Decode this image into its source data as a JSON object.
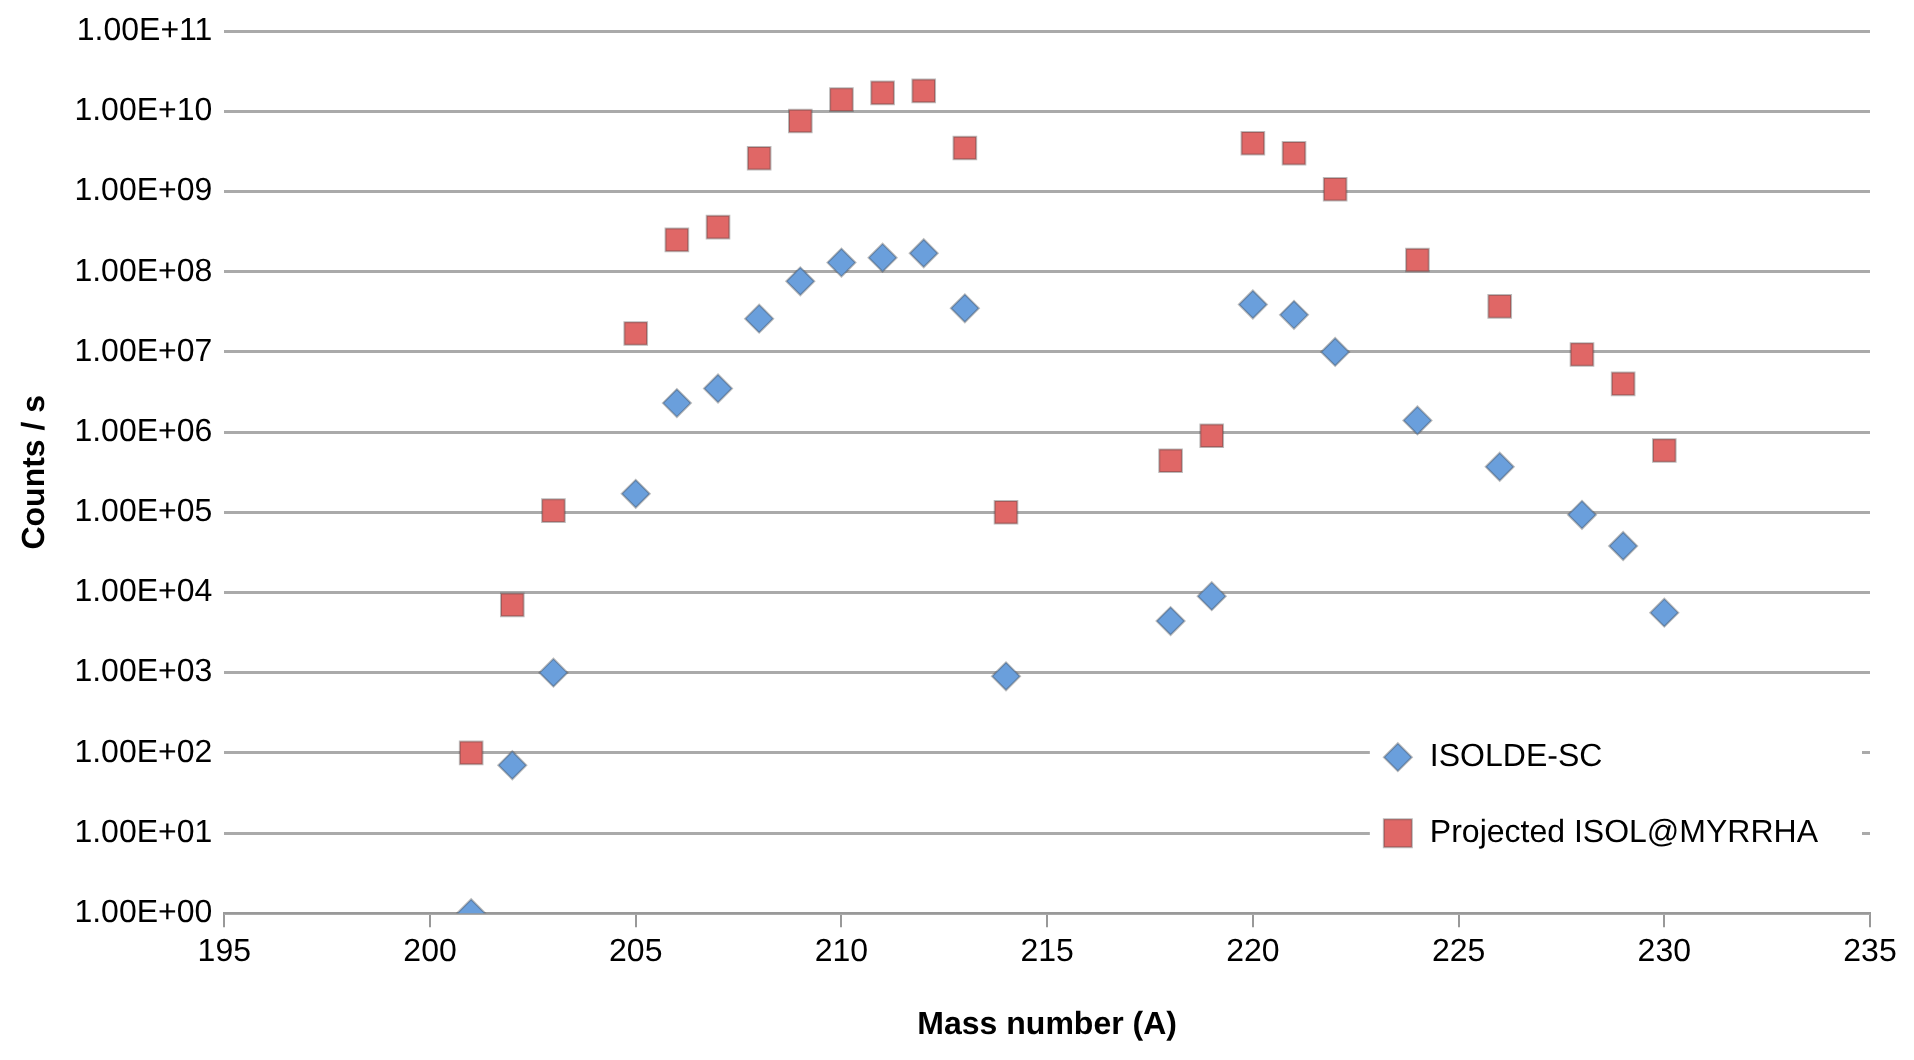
{
  "chart_data": {
    "type": "scatter",
    "xlabel": "Mass number (A)",
    "ylabel": "Counts / s",
    "log": "y",
    "grid": "y",
    "legend": "bottom right",
    "xlim": [
      195,
      235
    ],
    "xticks": [
      195,
      200,
      205,
      210,
      215,
      220,
      225,
      230,
      235
    ],
    "ylim": [
      1,
      100000000000
    ],
    "yticks": [
      {
        "value": 1,
        "label": "1.00E+00"
      },
      {
        "value": 10,
        "label": "1.00E+01"
      },
      {
        "value": 100,
        "label": "1.00E+02"
      },
      {
        "value": 1000,
        "label": "1.00E+03"
      },
      {
        "value": 10000,
        "label": "1.00E+04"
      },
      {
        "value": 100000,
        "label": "1.00E+05"
      },
      {
        "value": 1000000,
        "label": "1.00E+06"
      },
      {
        "value": 10000000,
        "label": "1.00E+07"
      },
      {
        "value": 100000000,
        "label": "1.00E+08"
      },
      {
        "value": 1000000000,
        "label": "1.00E+09"
      },
      {
        "value": 10000000000,
        "label": "1.00E+10"
      },
      {
        "value": 100000000000,
        "label": "1.00E+11"
      }
    ],
    "series": [
      {
        "name": "ISOLDE-SC",
        "color": "#6a9fdc",
        "marker": "diamond",
        "x": [
          201,
          202,
          203,
          205,
          206,
          207,
          208,
          209,
          210,
          211,
          212,
          213,
          214,
          218,
          219,
          220,
          221,
          222,
          224,
          226,
          228,
          229,
          230
        ],
        "values": [
          1,
          70,
          1000,
          170000,
          2300000,
          3500000,
          26000000,
          76000000,
          130000000,
          150000000,
          170000000,
          35000000,
          900,
          4400,
          9000,
          39000000,
          29000000,
          10000000,
          1400000,
          370000,
          93000,
          38000,
          5600
        ]
      },
      {
        "name": "Projected ISOL@MYRRHA",
        "color": "#e06766",
        "marker": "square",
        "x": [
          201,
          202,
          203,
          205,
          206,
          207,
          208,
          209,
          210,
          211,
          212,
          213,
          214,
          218,
          219,
          220,
          221,
          222,
          224,
          226,
          228,
          229,
          230
        ],
        "values": [
          100,
          7000,
          105000,
          17000000,
          250000000,
          360000000,
          2600000000,
          7600000000,
          14000000000,
          17000000000,
          18000000000,
          3500000000,
          100000,
          440000,
          900000,
          4000000000,
          3000000000,
          1070000000,
          140000000,
          37000000,
          9300000,
          4000000,
          590000
        ]
      }
    ]
  }
}
